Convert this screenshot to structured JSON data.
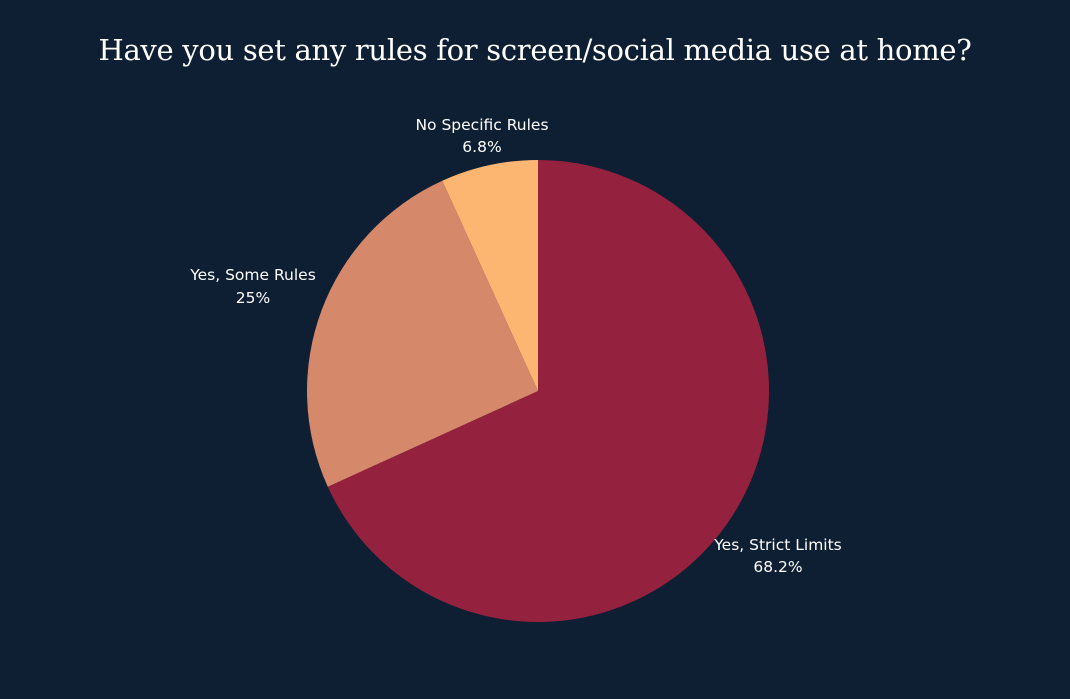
{
  "colors": {
    "background": "#0e1e33",
    "text": "#ffffff"
  },
  "chart_data": {
    "type": "pie",
    "title": "Have you set any rules for screen/social media use at home?",
    "slices": [
      {
        "label": "Yes, Strict Limits",
        "value": 68.2,
        "display": "68.2%",
        "color": "#94223f"
      },
      {
        "label": "Yes, Some Rules",
        "value": 25,
        "display": "25%",
        "color": "#d6886a"
      },
      {
        "label": "No Specific Rules",
        "value": 6.8,
        "display": "6.8%",
        "color": "#fdb671"
      }
    ]
  }
}
